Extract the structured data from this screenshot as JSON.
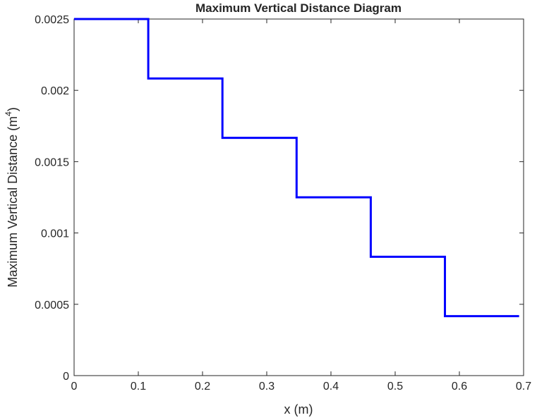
{
  "chart_data": {
    "type": "line",
    "title": "Maximum Vertical Distance Diagram",
    "xlabel": "x (m)",
    "ylabel": {
      "text": "Maximum Vertical Distance (m",
      "superscript": "4",
      "suffix": ")"
    },
    "xlim": [
      0,
      0.7
    ],
    "ylim": [
      0,
      0.0025
    ],
    "x_ticks": [
      0,
      0.1,
      0.2,
      0.3,
      0.4,
      0.5,
      0.6,
      0.7
    ],
    "x_tick_labels": [
      "0",
      "0.1",
      "0.2",
      "0.3",
      "0.4",
      "0.5",
      "0.6",
      "0.7"
    ],
    "y_ticks": [
      0,
      0.0005,
      0.001,
      0.0015,
      0.002,
      0.0025
    ],
    "y_tick_labels": [
      "0",
      "0.0005",
      "0.001",
      "0.0015",
      "0.002",
      "0.0025"
    ],
    "grid": false,
    "series": [
      {
        "color": "#0000ff",
        "x": [
          0,
          0.1155,
          0.1155,
          0.231,
          0.231,
          0.3465,
          0.3465,
          0.462,
          0.462,
          0.5775,
          0.5775,
          0.693
        ],
        "y": [
          0.0025,
          0.0025,
          0.002083,
          0.002083,
          0.001667,
          0.001667,
          0.00125,
          0.00125,
          0.000833,
          0.000833,
          0.000417,
          0.000417
        ]
      }
    ]
  }
}
